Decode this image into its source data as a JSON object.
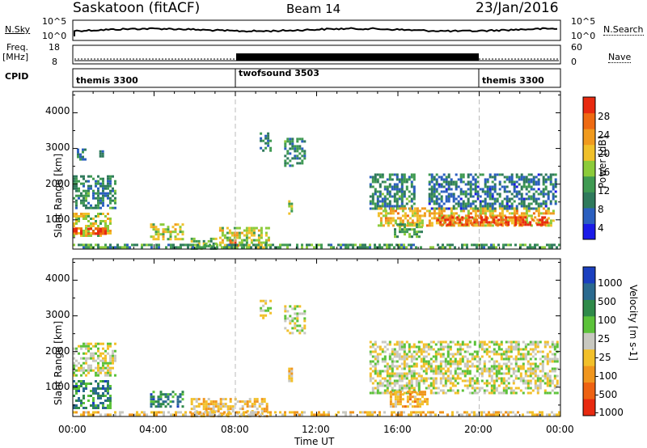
{
  "header": {
    "station": "Saskatoon (fitACF)",
    "beam": "Beam 14",
    "date": "23/Jan/2016"
  },
  "panels": {
    "nsky": {
      "label": "N.Sky",
      "right_label": "N.Search",
      "left_ticks": [
        "10^5",
        "10^0"
      ],
      "right_ticks": [
        "10^5",
        "10^0"
      ]
    },
    "freq": {
      "label_line1": "Freq.",
      "label_line2": "[MHz]",
      "left_ticks": [
        "18",
        "8"
      ],
      "right_ticks": [
        "60",
        "0"
      ],
      "right_label": "Nave"
    },
    "cpid": {
      "label": "CPID",
      "programs": [
        {
          "name": "themis 3300",
          "start_h": 0,
          "end_h": 8
        },
        {
          "name": "twofsound 3503",
          "start_h": 8,
          "end_h": 20
        },
        {
          "name": "themis 3300",
          "start_h": 20,
          "end_h": 24
        }
      ]
    }
  },
  "chart_data": [
    {
      "type": "heatmap",
      "name": "power",
      "xlabel": "Time UT",
      "ylabel": "Slant Range [km]",
      "x_ticks": [
        "00:00",
        "04:00",
        "08:00",
        "12:00",
        "16:00",
        "20:00",
        "00:00"
      ],
      "xlim_hours": [
        0,
        24
      ],
      "y_ticks": [
        1000,
        2000,
        3000,
        4000
      ],
      "ylim": [
        180,
        4600
      ],
      "colorbar": {
        "label": "Power [dB]",
        "ticks": [
          "4",
          "8",
          "12",
          "16",
          "20",
          "24",
          "28"
        ],
        "range": [
          0,
          30
        ],
        "colors": [
          "#1a1ae8",
          "#2b5fbf",
          "#2f7a5c",
          "#3f9a52",
          "#8ccb3a",
          "#f0c02a",
          "#f09a1e",
          "#ee6a12",
          "#e82a10"
        ]
      },
      "regions": [
        {
          "t0": 0.0,
          "t1": 2.1,
          "r0": 1350,
          "r1": 2250,
          "level": 0.3
        },
        {
          "t0": 0.0,
          "t1": 1.9,
          "r0": 550,
          "r1": 1200,
          "level": 0.55
        },
        {
          "t0": 0.0,
          "t1": 1.6,
          "r0": 600,
          "r1": 780,
          "level": 0.95
        },
        {
          "t0": 0.2,
          "t1": 0.6,
          "r0": 2700,
          "r1": 3000,
          "level": 0.25
        },
        {
          "t0": 1.3,
          "t1": 1.5,
          "r0": 2750,
          "r1": 2950,
          "level": 0.25
        },
        {
          "t0": 3.8,
          "t1": 5.4,
          "r0": 450,
          "r1": 900,
          "level": 0.55
        },
        {
          "t0": 5.8,
          "t1": 7.0,
          "r0": 200,
          "r1": 500,
          "level": 0.45
        },
        {
          "t0": 7.2,
          "t1": 9.6,
          "r0": 250,
          "r1": 800,
          "level": 0.55
        },
        {
          "t0": 7.7,
          "t1": 8.1,
          "r0": 250,
          "r1": 450,
          "level": 0.9
        },
        {
          "t0": 9.2,
          "t1": 9.7,
          "r0": 2950,
          "r1": 3450,
          "level": 0.3
        },
        {
          "t0": 10.4,
          "t1": 11.4,
          "r0": 2550,
          "r1": 3300,
          "level": 0.3
        },
        {
          "t0": 10.6,
          "t1": 10.8,
          "r0": 1150,
          "r1": 1550,
          "level": 0.5
        },
        {
          "t0": 14.6,
          "t1": 16.8,
          "r0": 1300,
          "r1": 2300,
          "level": 0.3
        },
        {
          "t0": 15.0,
          "t1": 23.6,
          "r0": 850,
          "r1": 1350,
          "level": 0.65
        },
        {
          "t0": 17.8,
          "t1": 23.3,
          "r0": 850,
          "r1": 1100,
          "level": 0.9
        },
        {
          "t0": 15.8,
          "t1": 17.2,
          "r0": 550,
          "r1": 900,
          "level": 0.4
        },
        {
          "t0": 17.5,
          "t1": 23.8,
          "r0": 1300,
          "r1": 2300,
          "level": 0.25
        },
        {
          "t0": 0.0,
          "t1": 24.0,
          "r0": 200,
          "r1": 330,
          "level": 0.35
        }
      ]
    },
    {
      "type": "heatmap",
      "name": "velocity",
      "xlabel": "Time UT",
      "ylabel": "Slant Range [km]",
      "x_ticks": [
        "00:00",
        "04:00",
        "08:00",
        "12:00",
        "16:00",
        "20:00",
        "00:00"
      ],
      "xlim_hours": [
        0,
        24
      ],
      "y_ticks": [
        1000,
        2000,
        3000,
        4000
      ],
      "ylim": [
        180,
        4600
      ],
      "colorbar": {
        "label": "Velocity [m s-1]",
        "ticks": [
          "1000",
          "500",
          "100",
          "25",
          "-25",
          "-100",
          "-500",
          "-1000"
        ],
        "colors": [
          "#1a3fbf",
          "#2b6a8f",
          "#2f8a4a",
          "#5cc23a",
          "#c8c8c0",
          "#f2c02a",
          "#f0961e",
          "#ee6212",
          "#e82a10"
        ]
      },
      "regions": [
        {
          "t0": 0.0,
          "t1": 2.1,
          "r0": 1350,
          "r1": 2250,
          "level": 0.5
        },
        {
          "t0": 0.0,
          "t1": 1.9,
          "r0": 450,
          "r1": 1200,
          "level": 0.25
        },
        {
          "t0": 3.8,
          "t1": 5.4,
          "r0": 450,
          "r1": 900,
          "level": 0.25
        },
        {
          "t0": 5.8,
          "t1": 9.6,
          "r0": 200,
          "r1": 700,
          "level": 0.62
        },
        {
          "t0": 9.2,
          "t1": 9.7,
          "r0": 2950,
          "r1": 3450,
          "level": 0.5
        },
        {
          "t0": 10.4,
          "t1": 11.4,
          "r0": 2550,
          "r1": 3300,
          "level": 0.5
        },
        {
          "t0": 10.6,
          "t1": 10.8,
          "r0": 1150,
          "r1": 1550,
          "level": 0.62
        },
        {
          "t0": 14.6,
          "t1": 23.8,
          "r0": 850,
          "r1": 2300,
          "level": 0.5
        },
        {
          "t0": 15.6,
          "t1": 17.4,
          "r0": 450,
          "r1": 900,
          "level": 0.66
        },
        {
          "t0": 0.0,
          "t1": 24.0,
          "r0": 200,
          "r1": 330,
          "level": 0.62
        }
      ]
    }
  ]
}
